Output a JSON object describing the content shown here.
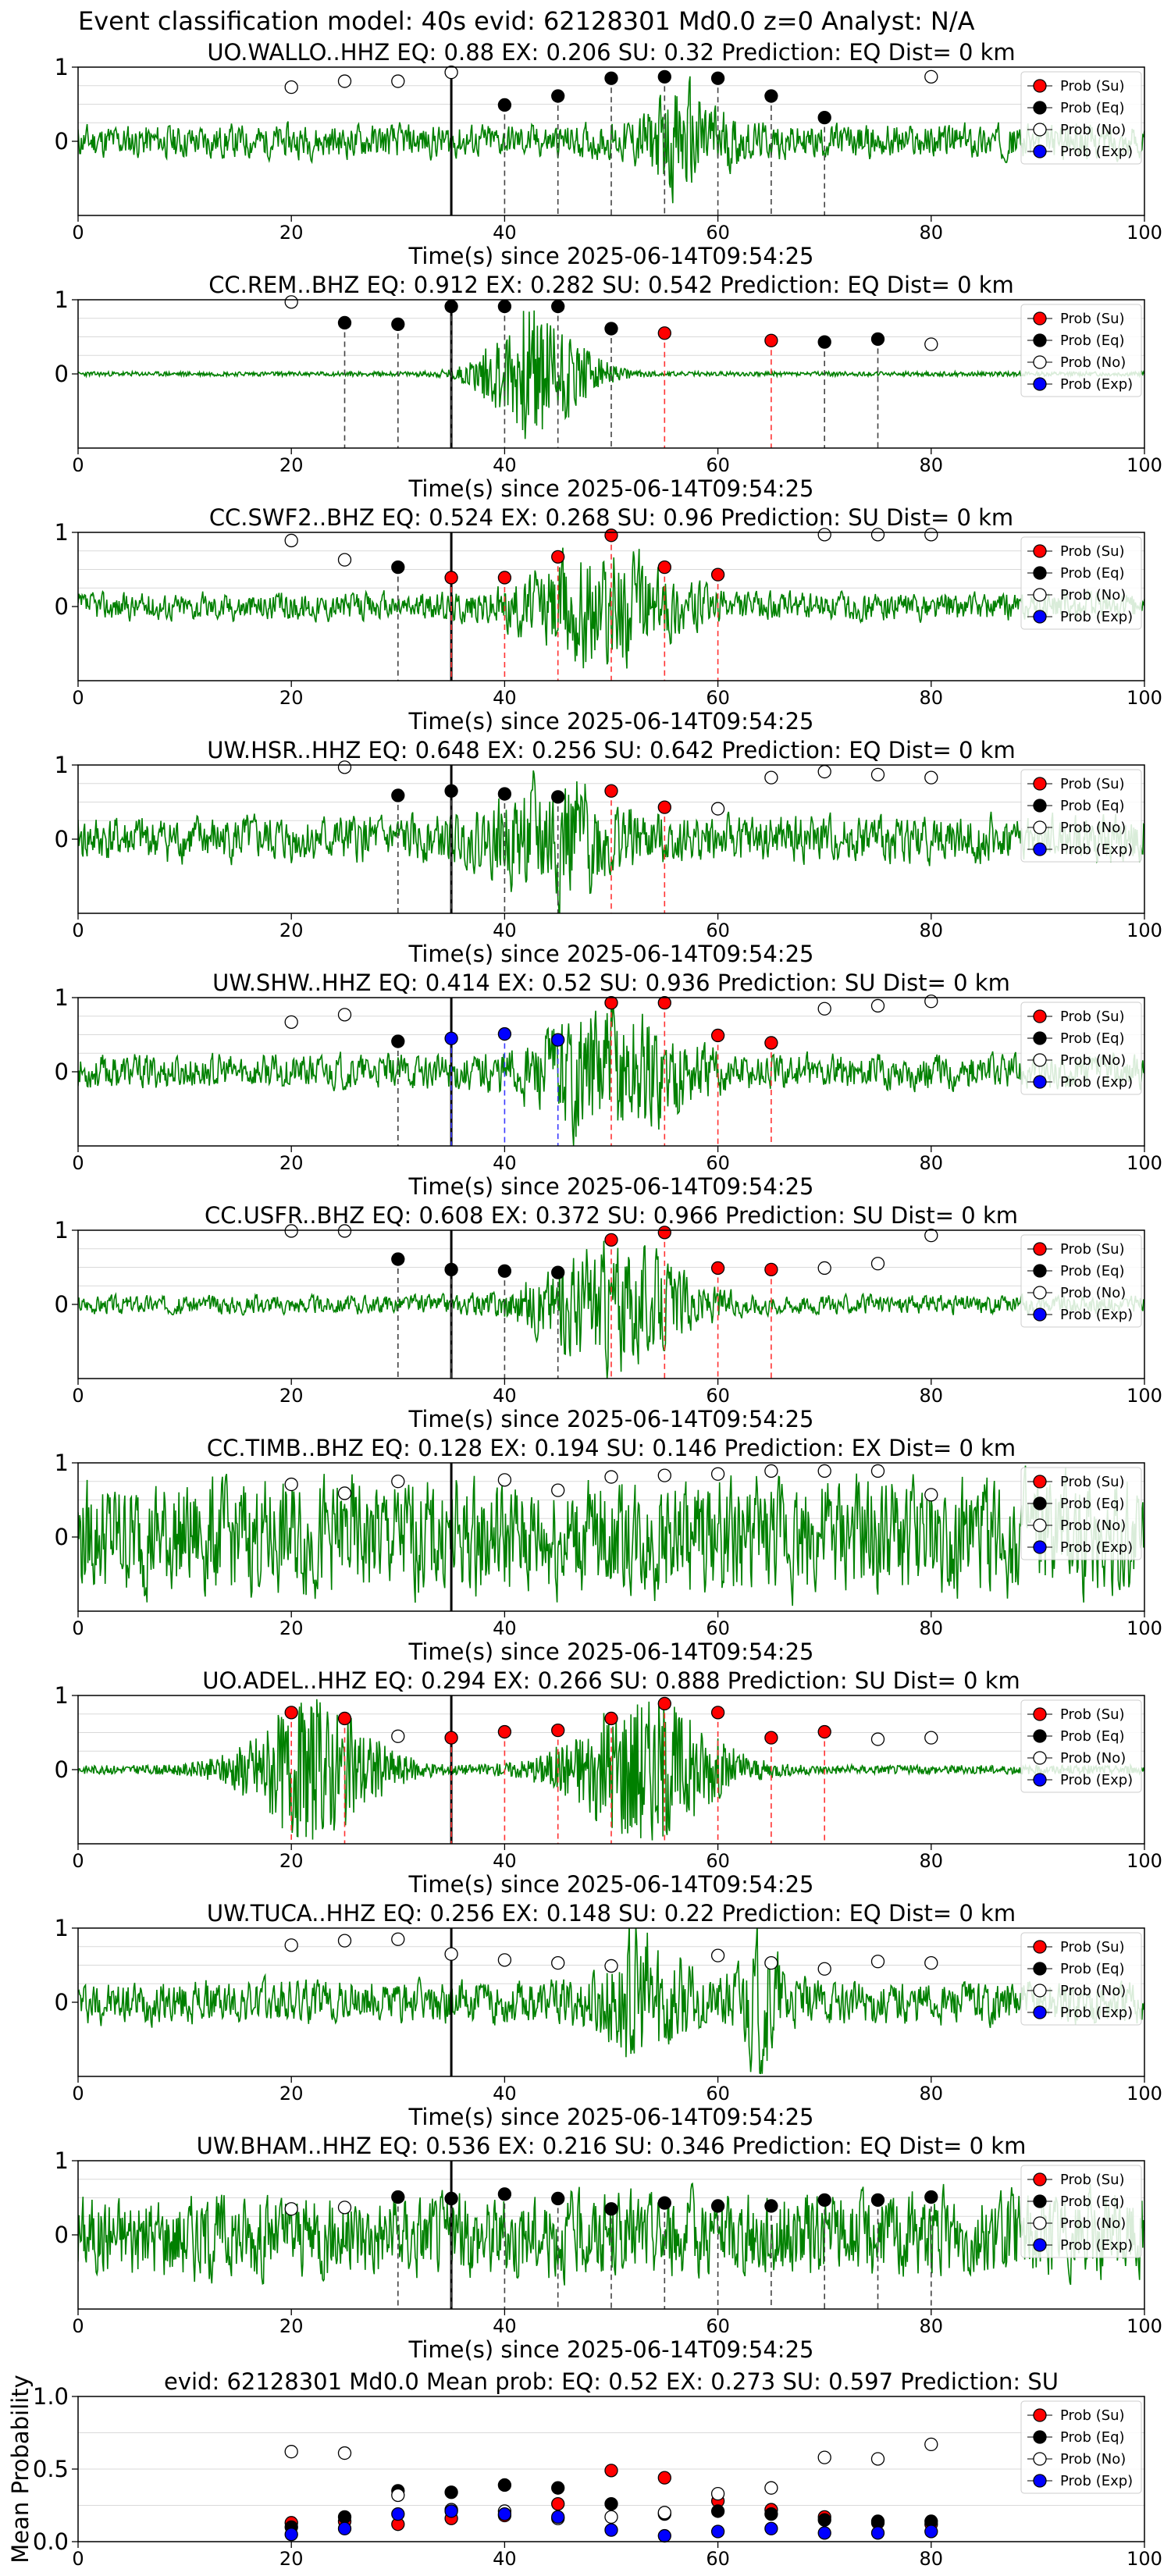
{
  "figure_title": "Event classification model: 40s evid: 62128301 Md0.0 z=0 Analyst: N/A",
  "xlabel": "Time(s) since 2025-06-14T09:54:25",
  "legend_labels": [
    "Prob (Su)",
    "Prob (Eq)",
    "Prob (No)",
    "Prob (Exp)"
  ],
  "colors": {
    "trace": "#008000",
    "su": "#ff0000",
    "eq": "#000000",
    "no": "#ffffff",
    "exp": "#0000ff",
    "grid": "#d9d9d9",
    "window_eq": "#444444",
    "window_su": "#ff3333",
    "window_exp": "#3a3aff"
  },
  "chart_data": [
    {
      "type": "line",
      "title": "UO.WALLO..HHZ   EQ: 0.88   EX: 0.206   SU: 0.32   Prediction: EQ    Dist= 0 km",
      "xlim": [
        0,
        100
      ],
      "ylim": [
        -1,
        1
      ],
      "xticks": [
        0,
        20,
        40,
        60,
        80,
        100
      ],
      "yticks": [
        "1",
        "0"
      ],
      "grid": true,
      "legend": "top-right",
      "event_marker_x": 35,
      "waveform": {
        "style": "noise_burst",
        "base_amp": 0.22,
        "bursts": [
          [
            57,
            5,
            0.55
          ]
        ],
        "seed": 11
      },
      "points": [
        {
          "x": 20,
          "y": 0.73,
          "cls": "no"
        },
        {
          "x": 25,
          "y": 0.81,
          "cls": "no"
        },
        {
          "x": 30,
          "y": 0.81,
          "cls": "no"
        },
        {
          "x": 35,
          "y": 0.93,
          "cls": "no"
        },
        {
          "x": 40,
          "y": 0.49,
          "cls": "eq"
        },
        {
          "x": 45,
          "y": 0.61,
          "cls": "eq"
        },
        {
          "x": 50,
          "y": 0.85,
          "cls": "eq"
        },
        {
          "x": 55,
          "y": 0.87,
          "cls": "eq"
        },
        {
          "x": 60,
          "y": 0.85,
          "cls": "eq"
        },
        {
          "x": 65,
          "y": 0.61,
          "cls": "eq"
        },
        {
          "x": 70,
          "y": 0.32,
          "cls": "eq"
        },
        {
          "x": 80,
          "y": 0.87,
          "cls": "no"
        }
      ]
    },
    {
      "type": "line",
      "title": "CC.REM..BHZ   EQ: 0.912  EX: 0.282  SU: 0.542   Prediction: EQ    Dist= 0 km",
      "xlim": [
        0,
        100
      ],
      "ylim": [
        -1,
        1
      ],
      "xticks": [
        0,
        20,
        40,
        60,
        80,
        100
      ],
      "yticks": [
        "1",
        "0"
      ],
      "grid": true,
      "legend": "top-right",
      "event_marker_x": 35,
      "waveform": {
        "style": "quiet_burst",
        "base_amp": 0.03,
        "bursts": [
          [
            43,
            6,
            0.9
          ]
        ],
        "seed": 23
      },
      "points": [
        {
          "x": 20,
          "y": 0.97,
          "cls": "no"
        },
        {
          "x": 25,
          "y": 0.69,
          "cls": "eq"
        },
        {
          "x": 30,
          "y": 0.67,
          "cls": "eq"
        },
        {
          "x": 35,
          "y": 0.91,
          "cls": "eq"
        },
        {
          "x": 40,
          "y": 0.91,
          "cls": "eq"
        },
        {
          "x": 45,
          "y": 0.91,
          "cls": "eq"
        },
        {
          "x": 50,
          "y": 0.61,
          "cls": "eq"
        },
        {
          "x": 55,
          "y": 0.55,
          "cls": "su"
        },
        {
          "x": 65,
          "y": 0.45,
          "cls": "su"
        },
        {
          "x": 70,
          "y": 0.43,
          "cls": "eq"
        },
        {
          "x": 75,
          "y": 0.47,
          "cls": "eq"
        },
        {
          "x": 80,
          "y": 0.4,
          "cls": "no"
        }
      ]
    },
    {
      "type": "line",
      "title": "CC.SWF2..BHZ   EQ: 0.524  EX: 0.268  SU: 0.96   Prediction: SU    Dist= 0 km",
      "xlim": [
        0,
        100
      ],
      "ylim": [
        -1,
        1
      ],
      "xticks": [
        0,
        20,
        40,
        60,
        80,
        100
      ],
      "yticks": [
        "1",
        "0"
      ],
      "grid": true,
      "legend": "top-right",
      "event_marker_x": 35,
      "waveform": {
        "style": "noise_burst",
        "base_amp": 0.18,
        "bursts": [
          [
            49,
            9,
            0.65
          ]
        ],
        "seed": 37
      },
      "points": [
        {
          "x": 20,
          "y": 0.89,
          "cls": "no"
        },
        {
          "x": 25,
          "y": 0.63,
          "cls": "no"
        },
        {
          "x": 30,
          "y": 0.53,
          "cls": "eq"
        },
        {
          "x": 35,
          "y": 0.39,
          "cls": "su"
        },
        {
          "x": 40,
          "y": 0.39,
          "cls": "su"
        },
        {
          "x": 45,
          "y": 0.67,
          "cls": "su"
        },
        {
          "x": 50,
          "y": 0.96,
          "cls": "su"
        },
        {
          "x": 55,
          "y": 0.53,
          "cls": "su"
        },
        {
          "x": 60,
          "y": 0.43,
          "cls": "su"
        },
        {
          "x": 70,
          "y": 0.97,
          "cls": "no"
        },
        {
          "x": 75,
          "y": 0.97,
          "cls": "no"
        },
        {
          "x": 80,
          "y": 0.97,
          "cls": "no"
        }
      ]
    },
    {
      "type": "line",
      "title": "UW.HSR..HHZ   EQ: 0.648  EX: 0.256  SU: 0.642   Prediction: EQ    Dist= 0 km",
      "xlim": [
        0,
        100
      ],
      "ylim": [
        -1,
        1
      ],
      "xticks": [
        0,
        20,
        40,
        60,
        80,
        100
      ],
      "yticks": [
        "1",
        "0"
      ],
      "grid": true,
      "legend": "top-right",
      "event_marker_x": 35,
      "waveform": {
        "style": "noise_burst",
        "base_amp": 0.3,
        "bursts": [
          [
            45,
            7,
            0.6
          ]
        ],
        "seed": 41
      },
      "points": [
        {
          "x": 25,
          "y": 0.97,
          "cls": "no"
        },
        {
          "x": 30,
          "y": 0.59,
          "cls": "eq"
        },
        {
          "x": 35,
          "y": 0.65,
          "cls": "eq"
        },
        {
          "x": 40,
          "y": 0.61,
          "cls": "eq"
        },
        {
          "x": 45,
          "y": 0.57,
          "cls": "eq"
        },
        {
          "x": 50,
          "y": 0.65,
          "cls": "su"
        },
        {
          "x": 55,
          "y": 0.43,
          "cls": "su"
        },
        {
          "x": 60,
          "y": 0.41,
          "cls": "no"
        },
        {
          "x": 65,
          "y": 0.83,
          "cls": "no"
        },
        {
          "x": 70,
          "y": 0.91,
          "cls": "no"
        },
        {
          "x": 75,
          "y": 0.87,
          "cls": "no"
        },
        {
          "x": 80,
          "y": 0.83,
          "cls": "no"
        }
      ]
    },
    {
      "type": "line",
      "title": "UW.SHW..HHZ   EQ: 0.414  EX: 0.52  SU: 0.936   Prediction: SU    Dist= 0 km",
      "xlim": [
        0,
        100
      ],
      "ylim": [
        -1,
        1
      ],
      "xticks": [
        0,
        20,
        40,
        60,
        80,
        100
      ],
      "yticks": [
        "1",
        "0"
      ],
      "grid": true,
      "legend": "top-right",
      "event_marker_x": 35,
      "waveform": {
        "style": "noise_burst",
        "base_amp": 0.22,
        "bursts": [
          [
            50,
            9,
            0.75
          ]
        ],
        "seed": 53
      },
      "points": [
        {
          "x": 20,
          "y": 0.67,
          "cls": "no"
        },
        {
          "x": 25,
          "y": 0.77,
          "cls": "no"
        },
        {
          "x": 30,
          "y": 0.41,
          "cls": "eq"
        },
        {
          "x": 35,
          "y": 0.45,
          "cls": "exp"
        },
        {
          "x": 40,
          "y": 0.51,
          "cls": "exp"
        },
        {
          "x": 45,
          "y": 0.43,
          "cls": "exp"
        },
        {
          "x": 50,
          "y": 0.93,
          "cls": "su"
        },
        {
          "x": 55,
          "y": 0.93,
          "cls": "su"
        },
        {
          "x": 60,
          "y": 0.49,
          "cls": "su"
        },
        {
          "x": 65,
          "y": 0.39,
          "cls": "su"
        },
        {
          "x": 70,
          "y": 0.85,
          "cls": "no"
        },
        {
          "x": 75,
          "y": 0.89,
          "cls": "no"
        },
        {
          "x": 80,
          "y": 0.95,
          "cls": "no"
        }
      ]
    },
    {
      "type": "line",
      "title": "CC.USFR..BHZ   EQ: 0.608  EX: 0.372  SU: 0.966   Prediction: SU    Dist= 0 km",
      "xlim": [
        0,
        100
      ],
      "ylim": [
        -1,
        1
      ],
      "xticks": [
        0,
        20,
        40,
        60,
        80,
        100
      ],
      "yticks": [
        "1",
        "0"
      ],
      "grid": true,
      "legend": "top-right",
      "event_marker_x": 35,
      "waveform": {
        "style": "noise_burst",
        "base_amp": 0.12,
        "bursts": [
          [
            50,
            9,
            0.75
          ]
        ],
        "seed": 67
      },
      "points": [
        {
          "x": 20,
          "y": 0.99,
          "cls": "no"
        },
        {
          "x": 25,
          "y": 0.99,
          "cls": "no"
        },
        {
          "x": 30,
          "y": 0.61,
          "cls": "eq"
        },
        {
          "x": 35,
          "y": 0.47,
          "cls": "eq"
        },
        {
          "x": 40,
          "y": 0.45,
          "cls": "eq"
        },
        {
          "x": 45,
          "y": 0.43,
          "cls": "eq"
        },
        {
          "x": 50,
          "y": 0.87,
          "cls": "su"
        },
        {
          "x": 55,
          "y": 0.97,
          "cls": "su"
        },
        {
          "x": 60,
          "y": 0.49,
          "cls": "su"
        },
        {
          "x": 65,
          "y": 0.47,
          "cls": "su"
        },
        {
          "x": 70,
          "y": 0.49,
          "cls": "no"
        },
        {
          "x": 75,
          "y": 0.55,
          "cls": "no"
        },
        {
          "x": 80,
          "y": 0.93,
          "cls": "no"
        }
      ]
    },
    {
      "type": "line",
      "title": "CC.TIMB..BHZ   EQ: 0.128  EX: 0.194  SU: 0.146   Prediction: EX    Dist= 0 km",
      "xlim": [
        0,
        100
      ],
      "ylim": [
        -1,
        1
      ],
      "xticks": [
        0,
        20,
        40,
        60,
        80,
        100
      ],
      "yticks": [
        "1",
        "0"
      ],
      "grid": true,
      "legend": "top-right",
      "event_marker_x": 35,
      "waveform": {
        "style": "noise_burst",
        "base_amp": 0.75,
        "bursts": [],
        "seed": 79
      },
      "points": [
        {
          "x": 20,
          "y": 0.71,
          "cls": "no"
        },
        {
          "x": 25,
          "y": 0.59,
          "cls": "no"
        },
        {
          "x": 30,
          "y": 0.75,
          "cls": "no"
        },
        {
          "x": 40,
          "y": 0.77,
          "cls": "no"
        },
        {
          "x": 45,
          "y": 0.63,
          "cls": "no"
        },
        {
          "x": 50,
          "y": 0.81,
          "cls": "no"
        },
        {
          "x": 55,
          "y": 0.83,
          "cls": "no"
        },
        {
          "x": 60,
          "y": 0.85,
          "cls": "no"
        },
        {
          "x": 65,
          "y": 0.89,
          "cls": "no"
        },
        {
          "x": 70,
          "y": 0.89,
          "cls": "no"
        },
        {
          "x": 75,
          "y": 0.89,
          "cls": "no"
        },
        {
          "x": 80,
          "y": 0.57,
          "cls": "no"
        }
      ]
    },
    {
      "type": "line",
      "title": "UO.ADEL..HHZ   EQ: 0.294  EX: 0.266  SU: 0.888   Prediction: SU    Dist= 0 km",
      "xlim": [
        0,
        100
      ],
      "ylim": [
        -1,
        1
      ],
      "xticks": [
        0,
        20,
        40,
        60,
        80,
        100
      ],
      "yticks": [
        "1",
        "0"
      ],
      "grid": true,
      "legend": "top-right",
      "event_marker_x": 35,
      "waveform": {
        "style": "quiet_burst",
        "base_amp": 0.06,
        "bursts": [
          [
            22,
            8,
            0.9
          ],
          [
            53,
            9,
            0.95
          ]
        ],
        "seed": 83
      },
      "points": [
        {
          "x": 20,
          "y": 0.77,
          "cls": "su"
        },
        {
          "x": 25,
          "y": 0.69,
          "cls": "su"
        },
        {
          "x": 30,
          "y": 0.45,
          "cls": "no"
        },
        {
          "x": 35,
          "y": 0.43,
          "cls": "su"
        },
        {
          "x": 40,
          "y": 0.51,
          "cls": "su"
        },
        {
          "x": 45,
          "y": 0.53,
          "cls": "su"
        },
        {
          "x": 50,
          "y": 0.69,
          "cls": "su"
        },
        {
          "x": 55,
          "y": 0.89,
          "cls": "su"
        },
        {
          "x": 60,
          "y": 0.77,
          "cls": "su"
        },
        {
          "x": 65,
          "y": 0.43,
          "cls": "su"
        },
        {
          "x": 70,
          "y": 0.51,
          "cls": "su"
        },
        {
          "x": 75,
          "y": 0.41,
          "cls": "no"
        },
        {
          "x": 80,
          "y": 0.43,
          "cls": "no"
        }
      ]
    },
    {
      "type": "line",
      "title": "UW.TUCA..HHZ   EQ: 0.256  EX: 0.148  SU: 0.22   Prediction: EQ    Dist= 0 km",
      "xlim": [
        0,
        100
      ],
      "ylim": [
        -1,
        1
      ],
      "xticks": [
        0,
        20,
        40,
        60,
        80,
        100
      ],
      "yticks": [
        "1",
        "0"
      ],
      "grid": true,
      "legend": "top-right",
      "event_marker_x": 35,
      "waveform": {
        "style": "noise_burst",
        "base_amp": 0.28,
        "bursts": [
          [
            53,
            5,
            0.7
          ],
          [
            64,
            3,
            0.6
          ]
        ],
        "seed": 97
      },
      "points": [
        {
          "x": 20,
          "y": 0.77,
          "cls": "no"
        },
        {
          "x": 25,
          "y": 0.83,
          "cls": "no"
        },
        {
          "x": 30,
          "y": 0.85,
          "cls": "no"
        },
        {
          "x": 35,
          "y": 0.65,
          "cls": "no"
        },
        {
          "x": 40,
          "y": 0.57,
          "cls": "no"
        },
        {
          "x": 45,
          "y": 0.53,
          "cls": "no"
        },
        {
          "x": 50,
          "y": 0.49,
          "cls": "no"
        },
        {
          "x": 60,
          "y": 0.63,
          "cls": "no"
        },
        {
          "x": 65,
          "y": 0.53,
          "cls": "no"
        },
        {
          "x": 70,
          "y": 0.45,
          "cls": "no"
        },
        {
          "x": 75,
          "y": 0.55,
          "cls": "no"
        },
        {
          "x": 80,
          "y": 0.53,
          "cls": "no"
        }
      ]
    },
    {
      "type": "line",
      "title": "UW.BHAM..HHZ   EQ: 0.536  EX: 0.216  SU: 0.346   Prediction: EQ    Dist= 0 km",
      "xlim": [
        0,
        100
      ],
      "ylim": [
        -1,
        1
      ],
      "xticks": [
        0,
        20,
        40,
        60,
        80,
        100
      ],
      "yticks": [
        "1",
        "0"
      ],
      "grid": true,
      "legend": "top-right",
      "event_marker_x": 35,
      "waveform": {
        "style": "noise_burst",
        "base_amp": 0.55,
        "bursts": [],
        "seed": 101
      },
      "points": [
        {
          "x": 20,
          "y": 0.35,
          "cls": "no"
        },
        {
          "x": 25,
          "y": 0.37,
          "cls": "no"
        },
        {
          "x": 30,
          "y": 0.51,
          "cls": "eq"
        },
        {
          "x": 35,
          "y": 0.49,
          "cls": "eq"
        },
        {
          "x": 40,
          "y": 0.55,
          "cls": "eq"
        },
        {
          "x": 45,
          "y": 0.49,
          "cls": "eq"
        },
        {
          "x": 50,
          "y": 0.35,
          "cls": "eq"
        },
        {
          "x": 55,
          "y": 0.43,
          "cls": "eq"
        },
        {
          "x": 60,
          "y": 0.39,
          "cls": "eq"
        },
        {
          "x": 65,
          "y": 0.39,
          "cls": "eq"
        },
        {
          "x": 70,
          "y": 0.47,
          "cls": "eq"
        },
        {
          "x": 75,
          "y": 0.47,
          "cls": "eq"
        },
        {
          "x": 80,
          "y": 0.51,
          "cls": "eq"
        }
      ]
    },
    {
      "type": "scatter",
      "title": "evid: 62128301  Md0.0   Mean prob:   EQ: 0.52  EX: 0.273  SU: 0.597   Prediction: SU",
      "ylabel": "Mean Probability",
      "xlim": [
        0,
        100
      ],
      "ylim": [
        0,
        1
      ],
      "xticks": [
        0,
        20,
        40,
        60,
        80,
        100
      ],
      "yticks": [
        "0.0",
        "0.5",
        "1.0"
      ],
      "grid": true,
      "legend": "top-right",
      "x": [
        20,
        25,
        30,
        35,
        40,
        45,
        50,
        55,
        60,
        65,
        70,
        75,
        80
      ],
      "series": [
        {
          "name": "Prob (Su)",
          "cls": "su",
          "values": [
            0.13,
            0.14,
            0.12,
            0.16,
            0.18,
            0.26,
            0.49,
            0.44,
            0.28,
            0.22,
            0.17,
            0.13,
            0.12
          ]
        },
        {
          "name": "Prob (Eq)",
          "cls": "eq",
          "values": [
            0.1,
            0.17,
            0.35,
            0.34,
            0.39,
            0.37,
            0.26,
            0.19,
            0.21,
            0.19,
            0.15,
            0.14,
            0.14
          ]
        },
        {
          "name": "Prob (No)",
          "cls": "no",
          "values": [
            0.62,
            0.61,
            0.32,
            0.22,
            0.21,
            0.16,
            0.17,
            0.2,
            0.33,
            0.37,
            0.58,
            0.57,
            0.67
          ]
        },
        {
          "name": "Prob (Exp)",
          "cls": "exp",
          "values": [
            0.05,
            0.09,
            0.19,
            0.21,
            0.19,
            0.17,
            0.08,
            0.04,
            0.07,
            0.09,
            0.06,
            0.06,
            0.07
          ]
        }
      ]
    }
  ]
}
